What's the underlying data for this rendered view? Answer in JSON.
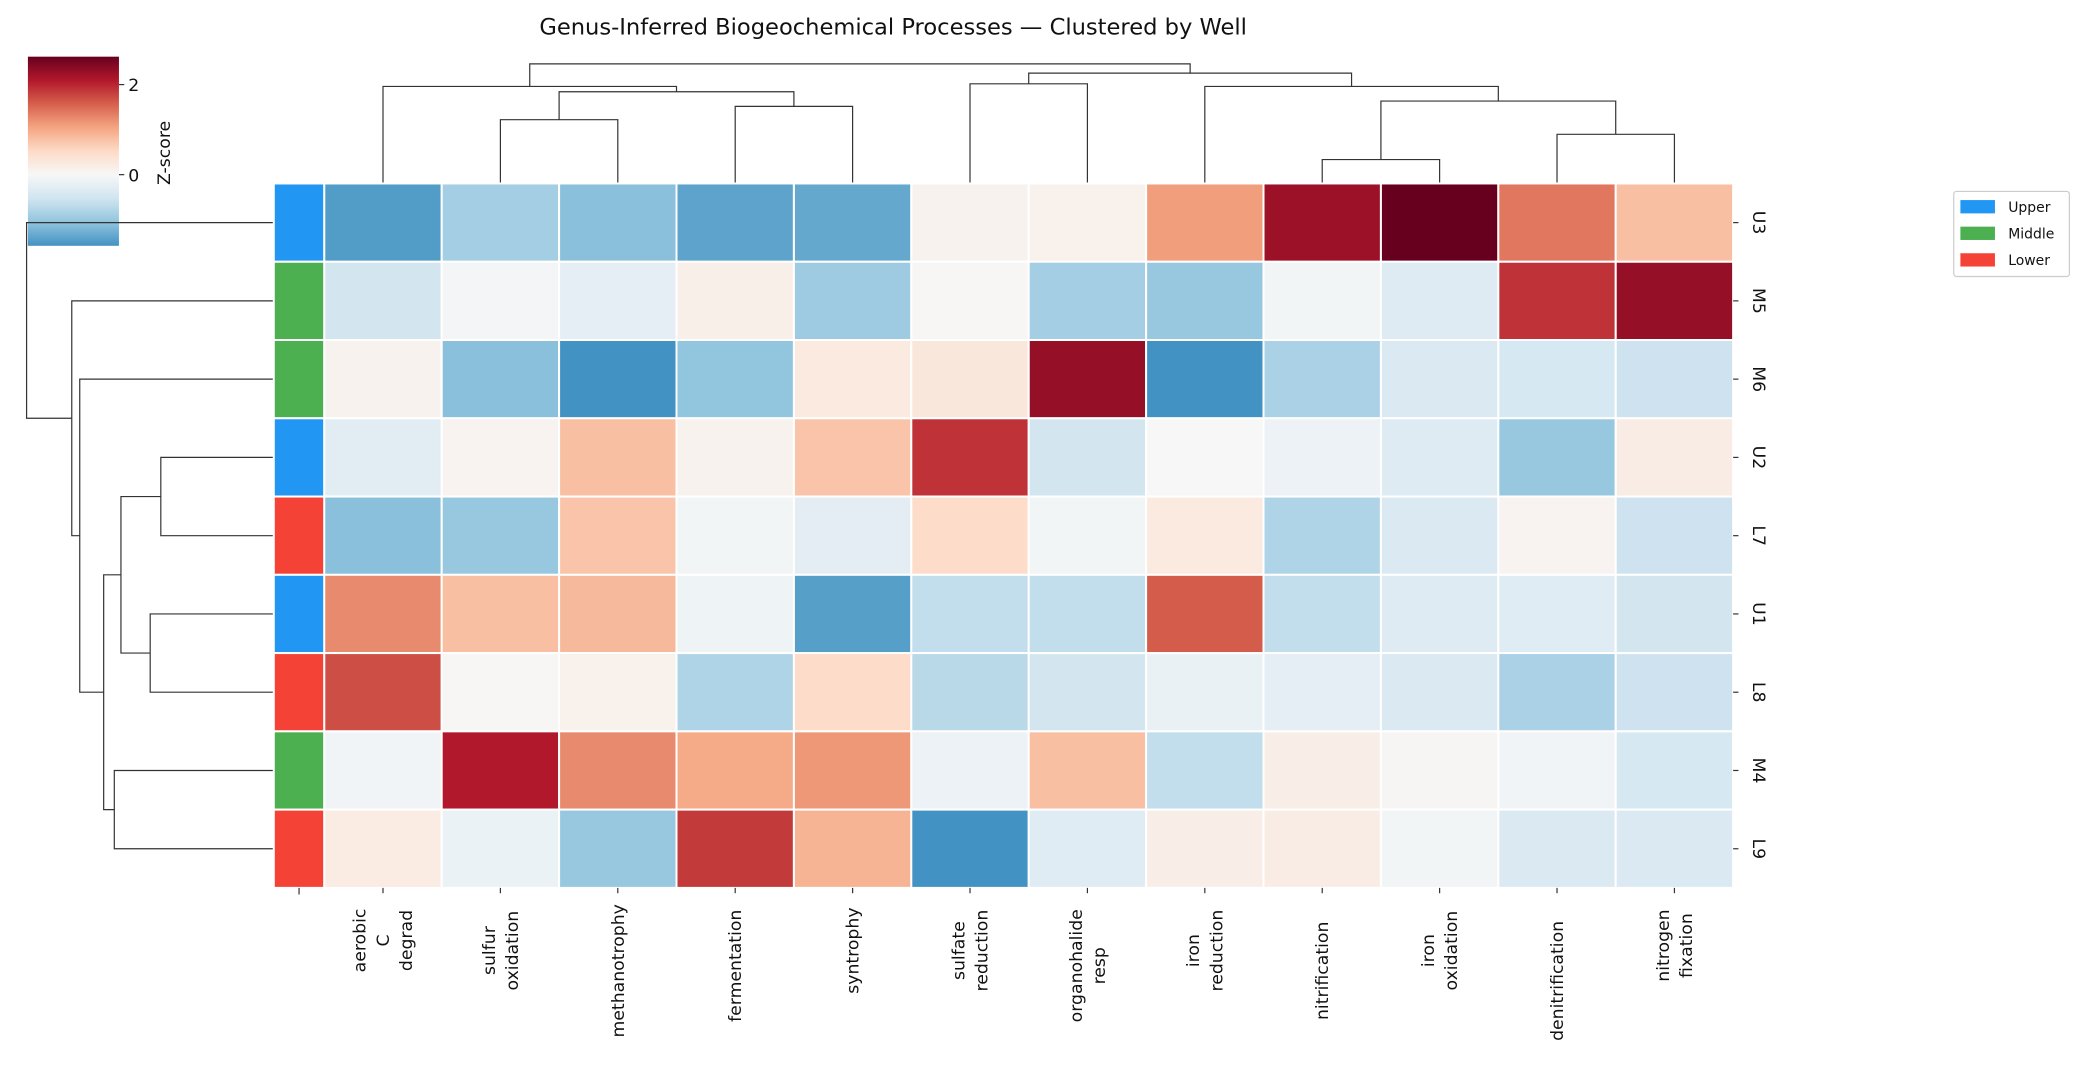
{
  "chart_data": {
    "type": "heatmap",
    "title": "Genus-Inferred Biogeochemical Processes — Clustered by Well",
    "colorbar": {
      "label": "Z-score",
      "ticks": [
        2,
        0
      ],
      "tick_labels": [
        "2",
        "0"
      ],
      "vmin": -1.58,
      "vmax": 2.62,
      "center": 0,
      "colormap": "RdBu_r"
    },
    "rows": [
      "U3",
      "M5",
      "M6",
      "U2",
      "L7",
      "U1",
      "L8",
      "M4",
      "L9"
    ],
    "row_groups": [
      "Upper",
      "Middle",
      "Middle",
      "Upper",
      "Lower",
      "Upper",
      "Lower",
      "Middle",
      "Lower"
    ],
    "columns": [
      {
        "name": "aerobic C degrad",
        "lines": [
          "aerobic",
          "C",
          "degrad"
        ]
      },
      {
        "name": "sulfur oxidation",
        "lines": [
          "sulfur",
          "oxidation"
        ]
      },
      {
        "name": "methanotrophy",
        "lines": [
          "methanotrophy"
        ]
      },
      {
        "name": "fermentation",
        "lines": [
          "fermentation"
        ]
      },
      {
        "name": "syntrophy",
        "lines": [
          "syntrophy"
        ]
      },
      {
        "name": "sulfate reduction",
        "lines": [
          "sulfate",
          "reduction"
        ]
      },
      {
        "name": "organohalide resp",
        "lines": [
          "organohalide",
          "resp"
        ]
      },
      {
        "name": "iron reduction",
        "lines": [
          "iron",
          "reduction"
        ]
      },
      {
        "name": "nitrification",
        "lines": [
          "nitrification"
        ]
      },
      {
        "name": "iron oxidation",
        "lines": [
          "iron",
          "oxidation"
        ]
      },
      {
        "name": "denitrification",
        "lines": [
          "denitrification"
        ]
      },
      {
        "name": "nitrogen fixation",
        "lines": [
          "nitrogen",
          "fixation"
        ]
      }
    ],
    "values": [
      [
        -1.47,
        -0.9,
        -1.1,
        -1.4,
        -1.35,
        0.1,
        0.12,
        1.1,
        2.25,
        2.62,
        1.4,
        0.8
      ],
      [
        -0.5,
        -0.05,
        -0.25,
        0.15,
        -0.95,
        0.02,
        -0.9,
        -1.0,
        -0.07,
        -0.35,
        1.9,
        2.3
      ],
      [
        0.1,
        -1.1,
        -1.58,
        -1.05,
        0.25,
        0.3,
        2.3,
        -1.58,
        -0.85,
        -0.4,
        -0.45,
        -0.55
      ],
      [
        -0.3,
        0.07,
        0.8,
        0.1,
        0.75,
        1.9,
        -0.5,
        0.0,
        -0.15,
        -0.35,
        -1.0,
        0.2
      ],
      [
        -1.1,
        -1.0,
        0.75,
        -0.07,
        -0.28,
        0.5,
        -0.07,
        0.25,
        -0.8,
        -0.4,
        0.07,
        -0.55
      ],
      [
        1.25,
        0.8,
        0.85,
        -0.12,
        -1.45,
        -0.65,
        -0.65,
        1.6,
        -0.65,
        -0.35,
        -0.32,
        -0.5
      ],
      [
        1.7,
        0.02,
        0.12,
        -0.8,
        0.5,
        -0.72,
        -0.5,
        -0.18,
        -0.25,
        -0.4,
        -0.85,
        -0.55
      ],
      [
        -0.1,
        2.1,
        1.25,
        1.0,
        1.15,
        -0.15,
        0.8,
        -0.65,
        0.17,
        0.03,
        -0.08,
        -0.45
      ],
      [
        0.22,
        -0.16,
        -1.0,
        1.85,
        0.9,
        -1.58,
        -0.32,
        0.18,
        0.2,
        -0.07,
        -0.38,
        -0.4
      ]
    ],
    "legend": {
      "placement": "right",
      "entries": [
        {
          "label": "Upper",
          "color": "#2196f3"
        },
        {
          "label": "Middle",
          "color": "#4caf50"
        },
        {
          "label": "Lower",
          "color": "#f44336"
        }
      ]
    }
  }
}
